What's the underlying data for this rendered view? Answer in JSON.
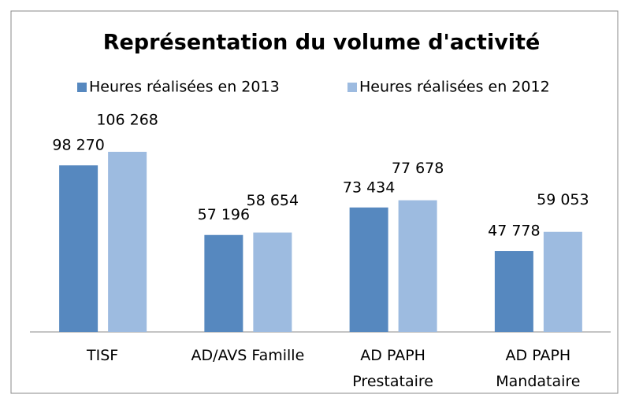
{
  "chart_data": {
    "type": "bar",
    "title": "Représentation du volume d'activité",
    "categories": [
      "TISF",
      "AD/AVS Famille",
      "AD PAPH\nPrestataire",
      "AD PAPH\nMandataire"
    ],
    "series": [
      {
        "name": "Heures réalisées en 2013",
        "color": "#5688bf",
        "values": [
          98270,
          57196,
          73434,
          47778
        ],
        "value_labels": [
          "98 270",
          "57 196",
          "73 434",
          "47 778"
        ]
      },
      {
        "name": "Heures réalisées en 2012",
        "color": "#9dbbe0",
        "values": [
          106268,
          58654,
          77678,
          59053
        ],
        "value_labels": [
          "106 268",
          "58 654",
          "77 678",
          "59 053"
        ]
      }
    ],
    "legend": "top",
    "grid": false
  }
}
